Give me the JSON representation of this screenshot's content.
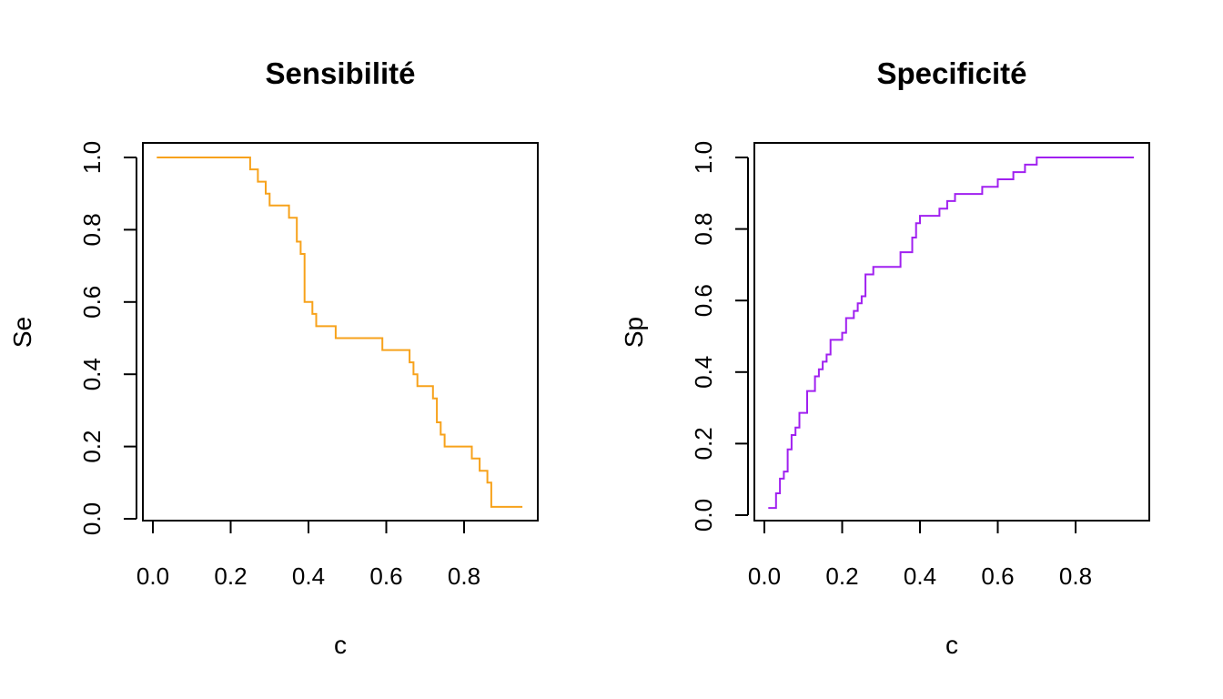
{
  "chart_data": [
    {
      "type": "line",
      "step": true,
      "title": "Sensibilité",
      "xlabel": "c",
      "ylabel": "Se",
      "xlim": [
        0.0,
        0.95
      ],
      "ylim": [
        0.0,
        1.0
      ],
      "xticks": [
        "0.0",
        "0.2",
        "0.4",
        "0.6",
        "0.8"
      ],
      "yticks": [
        "0.0",
        "0.2",
        "0.4",
        "0.6",
        "0.8",
        "1.0"
      ],
      "color": "#f7a21b",
      "series": [
        {
          "name": "Se",
          "x": [
            0.01,
            0.25,
            0.27,
            0.29,
            0.3,
            0.35,
            0.37,
            0.38,
            0.39,
            0.41,
            0.42,
            0.47,
            0.59,
            0.66,
            0.67,
            0.68,
            0.72,
            0.73,
            0.74,
            0.75,
            0.82,
            0.84,
            0.86,
            0.87,
            0.88,
            0.95
          ],
          "y": [
            1.0,
            0.967,
            0.933,
            0.9,
            0.867,
            0.833,
            0.767,
            0.733,
            0.6,
            0.567,
            0.533,
            0.5,
            0.467,
            0.433,
            0.4,
            0.367,
            0.333,
            0.267,
            0.233,
            0.2,
            0.167,
            0.133,
            0.1,
            0.033,
            0.033,
            0.033
          ]
        }
      ]
    },
    {
      "type": "line",
      "step": true,
      "title": "Specificité",
      "xlabel": "c",
      "ylabel": "Sp",
      "xlim": [
        0.0,
        0.95
      ],
      "ylim": [
        0.0,
        1.0
      ],
      "xticks": [
        "0.0",
        "0.2",
        "0.4",
        "0.6",
        "0.8"
      ],
      "yticks": [
        "0.0",
        "0.2",
        "0.4",
        "0.6",
        "0.8",
        "1.0"
      ],
      "color": "#a020f0",
      "series": [
        {
          "name": "Sp",
          "x": [
            0.01,
            0.03,
            0.04,
            0.05,
            0.06,
            0.07,
            0.08,
            0.09,
            0.11,
            0.13,
            0.14,
            0.15,
            0.16,
            0.17,
            0.2,
            0.21,
            0.23,
            0.24,
            0.25,
            0.26,
            0.28,
            0.35,
            0.38,
            0.39,
            0.4,
            0.45,
            0.47,
            0.49,
            0.56,
            0.6,
            0.64,
            0.67,
            0.7,
            0.95
          ],
          "y": [
            0.02,
            0.061,
            0.102,
            0.122,
            0.184,
            0.224,
            0.245,
            0.286,
            0.347,
            0.388,
            0.408,
            0.429,
            0.449,
            0.49,
            0.51,
            0.551,
            0.571,
            0.592,
            0.612,
            0.673,
            0.694,
            0.735,
            0.776,
            0.816,
            0.837,
            0.857,
            0.878,
            0.898,
            0.918,
            0.939,
            0.959,
            0.98,
            1.0,
            1.0
          ]
        }
      ]
    }
  ]
}
